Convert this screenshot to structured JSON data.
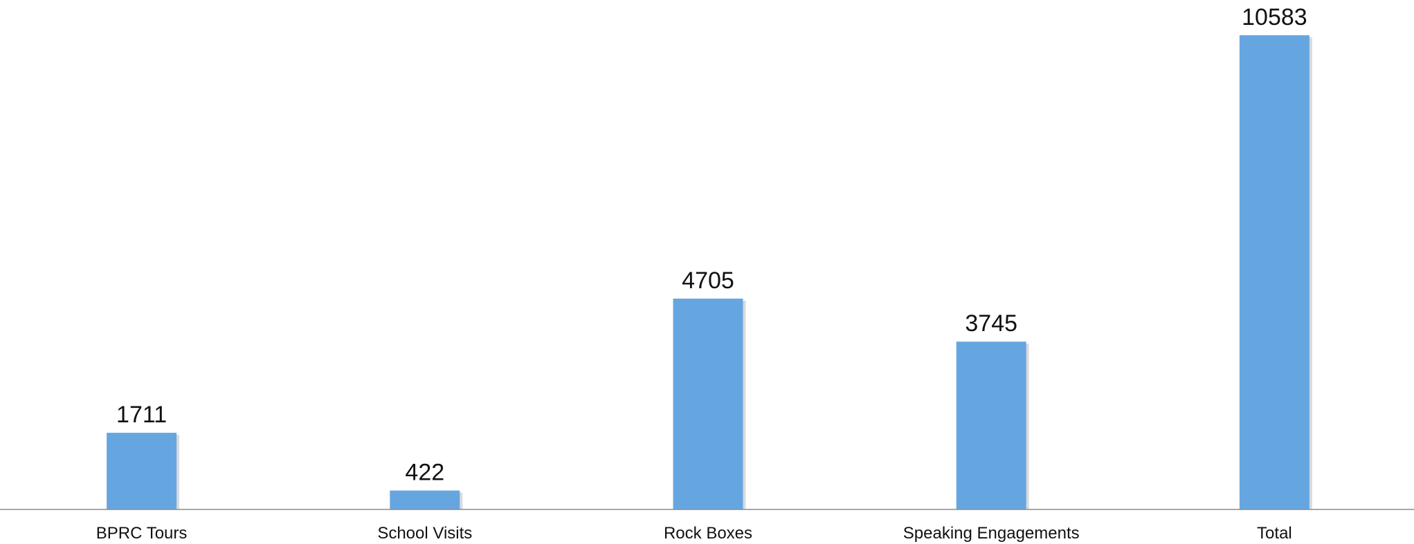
{
  "chart_data": {
    "type": "bar",
    "categories": [
      "BPRC Tours",
      "School Visits",
      "Rock Boxes",
      "Speaking Engagements",
      "Total"
    ],
    "values": [
      1711,
      422,
      4705,
      3745,
      10583
    ],
    "title": "",
    "xlabel": "",
    "ylabel": "",
    "ylim": [
      0,
      10583
    ],
    "grid": false,
    "legend": "none",
    "data_labels": true,
    "colors": {
      "bar": "#66A6E0",
      "bar_shadow": "#B9BDC2",
      "axis": "#8C8C8C",
      "text": "#111111"
    }
  }
}
